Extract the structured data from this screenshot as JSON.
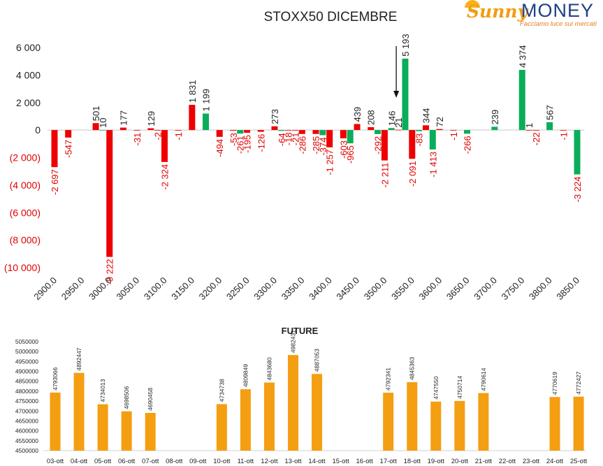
{
  "logo": {
    "brand_a": "Sunny",
    "brand_b": "MONEY",
    "tagline": "Facciamo luce sui mercati"
  },
  "colors": {
    "positive": "#0aad59",
    "negative": "#ee0000",
    "future": "#f49e12",
    "text": "#222222"
  },
  "chart_data": [
    {
      "type": "bar",
      "title": "STOXX50 DICEMBRE",
      "ylim": [
        -10000,
        6000
      ],
      "yticks": [
        {
          "v": 6000,
          "label": "6 000"
        },
        {
          "v": 4000,
          "label": "4 000"
        },
        {
          "v": 2000,
          "label": "2 000"
        },
        {
          "v": 0,
          "label": "0"
        },
        {
          "v": -2000,
          "label": "(2 000)"
        },
        {
          "v": -4000,
          "label": "(4 000)"
        },
        {
          "v": -6000,
          "label": "(6 000)"
        },
        {
          "v": -8000,
          "label": "(8 000)"
        },
        {
          "v": -10000,
          "label": "(10 000)"
        }
      ],
      "x_tick_labels": [
        "2900.0",
        "2950.0",
        "3000.0",
        "3050.0",
        "3100.0",
        "3150.0",
        "3200.0",
        "3250.0",
        "3300.0",
        "3350.0",
        "3400.0",
        "3450.0",
        "3500.0",
        "3550.0",
        "3600.0",
        "3650.0",
        "3700.0",
        "3750.0",
        "3800.0",
        "3850.0"
      ],
      "x_range": [
        2900,
        3850
      ],
      "annotation": "arrow marking strike 3525",
      "grid": false,
      "legend": "none",
      "bars": [
        {
          "strike": 2900,
          "value": -2697,
          "label": "-2 697",
          "color": "#ee0000"
        },
        {
          "strike": 2925,
          "value": -547,
          "label": "-547",
          "color": "#ee0000"
        },
        {
          "strike": 2975,
          "value": 501,
          "label": "501",
          "color": "#ee0000"
        },
        {
          "strike": 2987.5,
          "value": 10,
          "label": "10",
          "color": "#0aad59"
        },
        {
          "strike": 3000,
          "value": -9222,
          "label": "-9 222",
          "color": "#ee0000"
        },
        {
          "strike": 3025,
          "value": 177,
          "label": "177",
          "color": "#ee0000"
        },
        {
          "strike": 3050,
          "value": -31,
          "label": "-31",
          "color": "#ee0000"
        },
        {
          "strike": 3075,
          "value": 129,
          "label": "129",
          "color": "#ee0000"
        },
        {
          "strike": 3087.5,
          "value": -2,
          "label": "-2",
          "color": "#ee0000"
        },
        {
          "strike": 3100,
          "value": -2324,
          "label": "-2 324",
          "color": "#ee0000"
        },
        {
          "strike": 3125,
          "value": -1,
          "label": "-1",
          "color": "#ee0000"
        },
        {
          "strike": 3150,
          "value": 1831,
          "label": "1 831",
          "color": "#ee0000"
        },
        {
          "strike": 3175,
          "value": 1199,
          "label": "1 199",
          "color": "#0aad59"
        },
        {
          "strike": 3200,
          "value": -494,
          "label": "-494",
          "color": "#ee0000"
        },
        {
          "strike": 3225,
          "value": -53,
          "label": "-53",
          "color": "#ee0000"
        },
        {
          "strike": 3237.5,
          "value": -261,
          "label": "-261",
          "color": "#0aad59"
        },
        {
          "strike": 3250,
          "value": -195,
          "label": "-195",
          "color": "#ee0000"
        },
        {
          "strike": 3275,
          "value": -126,
          "label": "-126",
          "color": "#ee0000"
        },
        {
          "strike": 3300,
          "value": 273,
          "label": "273",
          "color": "#ee0000"
        },
        {
          "strike": 3312.5,
          "value": -64,
          "label": "-64",
          "color": "#0aad59"
        },
        {
          "strike": 3325,
          "value": -18,
          "label": "-18",
          "color": "#ee0000"
        },
        {
          "strike": 3337.5,
          "value": -21,
          "label": "-21",
          "color": "#ee0000"
        },
        {
          "strike": 3350,
          "value": -286,
          "label": "-286",
          "color": "#ee0000"
        },
        {
          "strike": 3375,
          "value": -285,
          "label": "-285",
          "color": "#ee0000"
        },
        {
          "strike": 3387.5,
          "value": -374,
          "label": "-374",
          "color": "#0aad59"
        },
        {
          "strike": 3400,
          "value": -1257,
          "label": "-1 257",
          "color": "#ee0000"
        },
        {
          "strike": 3425,
          "value": -603,
          "label": "-603",
          "color": "#ee0000"
        },
        {
          "strike": 3437.5,
          "value": -965,
          "label": "-965",
          "color": "#0aad59"
        },
        {
          "strike": 3450,
          "value": 439,
          "label": "439",
          "color": "#ee0000"
        },
        {
          "strike": 3475,
          "value": 208,
          "label": "208",
          "color": "#ee0000"
        },
        {
          "strike": 3487.5,
          "value": -292,
          "label": "-292",
          "color": "#0aad59"
        },
        {
          "strike": 3500,
          "value": -2211,
          "label": "-2 211",
          "color": "#ee0000"
        },
        {
          "strike": 3512.5,
          "value": 146,
          "label": "146",
          "color": "#0aad59"
        },
        {
          "strike": 3525,
          "value": 21,
          "label": "21",
          "color": "#ee0000"
        },
        {
          "strike": 3537.5,
          "value": 5193,
          "label": "5 193",
          "color": "#0aad59"
        },
        {
          "strike": 3550,
          "value": -2091,
          "label": "-2 091",
          "color": "#ee0000"
        },
        {
          "strike": 3562.5,
          "value": -83,
          "label": "-83",
          "color": "#0aad59"
        },
        {
          "strike": 3575,
          "value": 344,
          "label": "344",
          "color": "#ee0000"
        },
        {
          "strike": 3587.5,
          "value": -1413,
          "label": "-1 413",
          "color": "#0aad59"
        },
        {
          "strike": 3600,
          "value": 72,
          "label": "72",
          "color": "#ee0000"
        },
        {
          "strike": 3625,
          "value": -1,
          "label": "-1",
          "color": "#ee0000"
        },
        {
          "strike": 3650,
          "value": -266,
          "label": "-266",
          "color": "#0aad59"
        },
        {
          "strike": 3700,
          "value": 239,
          "label": "239",
          "color": "#0aad59"
        },
        {
          "strike": 3750,
          "value": 4374,
          "label": "4 374",
          "color": "#0aad59"
        },
        {
          "strike": 3762.5,
          "value": 1,
          "label": "1",
          "color": "#ee0000"
        },
        {
          "strike": 3775,
          "value": -22,
          "label": "-22",
          "color": "#ee0000"
        },
        {
          "strike": 3800,
          "value": 567,
          "label": "567",
          "color": "#0aad59"
        },
        {
          "strike": 3825,
          "value": -1,
          "label": "-1",
          "color": "#ee0000"
        },
        {
          "strike": 3850,
          "value": -3224,
          "label": "-3 224",
          "color": "#0aad59"
        }
      ]
    },
    {
      "type": "bar",
      "title": "FUTURE",
      "ylim": [
        4500000,
        5050000
      ],
      "yticks": [
        {
          "v": 5050000,
          "label": "5050000"
        },
        {
          "v": 5000000,
          "label": "5000000"
        },
        {
          "v": 4950000,
          "label": "4950000"
        },
        {
          "v": 4900000,
          "label": "4900000"
        },
        {
          "v": 4850000,
          "label": "4850000"
        },
        {
          "v": 4800000,
          "label": "4800000"
        },
        {
          "v": 4750000,
          "label": "4750000"
        },
        {
          "v": 4700000,
          "label": "4700000"
        },
        {
          "v": 4650000,
          "label": "4650000"
        },
        {
          "v": 4600000,
          "label": "4600000"
        },
        {
          "v": 4550000,
          "label": "4550000"
        },
        {
          "v": 4500000,
          "label": "4500000"
        }
      ],
      "categories": [
        "03-ott",
        "04-ott",
        "05-ott",
        "06-ott",
        "07-ott",
        "08-ott",
        "09-ott",
        "10-ott",
        "11-ott",
        "12-ott",
        "13-ott",
        "14-ott",
        "15-ott",
        "16-ott",
        "17-ott",
        "18-ott",
        "19-ott",
        "20-ott",
        "21-ott",
        "22-ott",
        "23-ott",
        "24-ott",
        "25-ott"
      ],
      "values": [
        4793066,
        4892447,
        4734013,
        4698506,
        4690458,
        null,
        null,
        4734738,
        4809849,
        4843680,
        4982431,
        4887053,
        null,
        null,
        4792341,
        4845363,
        4747550,
        4750714,
        4790614,
        null,
        null,
        4770619,
        4772427
      ],
      "grid": false,
      "legend": "none"
    }
  ]
}
